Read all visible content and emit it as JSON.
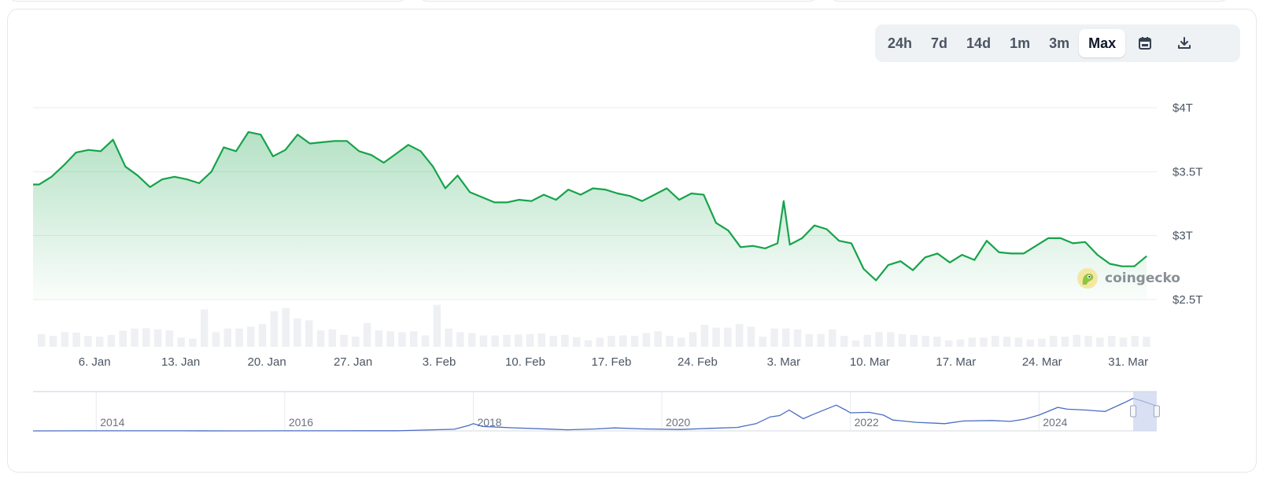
{
  "controls": {
    "ranges": [
      "24h",
      "7d",
      "14d",
      "1m",
      "3m",
      "Max"
    ],
    "active_range": "Max",
    "calendar_icon": "calendar-icon",
    "download_icon": "download-icon"
  },
  "watermark": {
    "text": "coingecko",
    "logo_icon": "gecko-logo-icon"
  },
  "colors": {
    "line": "#16a34a",
    "fill": "#16a34a",
    "volume": "#eef0f3",
    "navigator": "#4a6cc2",
    "selection": "#c9d3ee"
  },
  "chart_data": [
    {
      "type": "area",
      "title": "",
      "xlabel": "",
      "ylabel": "",
      "x_start": "2025-01-01",
      "x_end": "2025-04-02",
      "x_ticks": [
        {
          "date": "2025-01-06",
          "label": "6. Jan"
        },
        {
          "date": "2025-01-13",
          "label": "13. Jan"
        },
        {
          "date": "2025-01-20",
          "label": "20. Jan"
        },
        {
          "date": "2025-01-27",
          "label": "27. Jan"
        },
        {
          "date": "2025-02-03",
          "label": "3. Feb"
        },
        {
          "date": "2025-02-10",
          "label": "10. Feb"
        },
        {
          "date": "2025-02-17",
          "label": "17. Feb"
        },
        {
          "date": "2025-02-24",
          "label": "24. Feb"
        },
        {
          "date": "2025-03-03",
          "label": "3. Mar"
        },
        {
          "date": "2025-03-10",
          "label": "10. Mar"
        },
        {
          "date": "2025-03-17",
          "label": "17. Mar"
        },
        {
          "date": "2025-03-24",
          "label": "24. Mar"
        },
        {
          "date": "2025-03-31",
          "label": "31. Mar"
        }
      ],
      "y_ticks": [
        {
          "value": 2.5,
          "label": "$2.5T"
        },
        {
          "value": 3.0,
          "label": "$3T"
        },
        {
          "value": 3.5,
          "label": "$3.5T"
        },
        {
          "value": 4.0,
          "label": "$4T"
        }
      ],
      "ylim": [
        2.5,
        4.0
      ],
      "grid": true,
      "series": [
        {
          "values": [
            [
              "2025-01-01T00:00",
              3.4
            ],
            [
              "2025-01-01T12:00",
              3.4
            ],
            [
              "2025-01-02T12:00",
              3.46
            ],
            [
              "2025-01-03T12:00",
              3.55
            ],
            [
              "2025-01-04T12:00",
              3.65
            ],
            [
              "2025-01-05T12:00",
              3.67
            ],
            [
              "2025-01-06T12:00",
              3.66
            ],
            [
              "2025-01-07T12:00",
              3.75
            ],
            [
              "2025-01-08T12:00",
              3.54
            ],
            [
              "2025-01-09T12:00",
              3.47
            ],
            [
              "2025-01-10T12:00",
              3.38
            ],
            [
              "2025-01-11T12:00",
              3.44
            ],
            [
              "2025-01-12T12:00",
              3.46
            ],
            [
              "2025-01-13T12:00",
              3.44
            ],
            [
              "2025-01-14T12:00",
              3.41
            ],
            [
              "2025-01-15T12:00",
              3.5
            ],
            [
              "2025-01-16T12:00",
              3.69
            ],
            [
              "2025-01-17T12:00",
              3.66
            ],
            [
              "2025-01-18T12:00",
              3.81
            ],
            [
              "2025-01-19T12:00",
              3.79
            ],
            [
              "2025-01-20T12:00",
              3.62
            ],
            [
              "2025-01-21T12:00",
              3.67
            ],
            [
              "2025-01-22T12:00",
              3.79
            ],
            [
              "2025-01-23T12:00",
              3.72
            ],
            [
              "2025-01-24T12:00",
              3.73
            ],
            [
              "2025-01-25T12:00",
              3.74
            ],
            [
              "2025-01-26T12:00",
              3.74
            ],
            [
              "2025-01-27T12:00",
              3.66
            ],
            [
              "2025-01-28T12:00",
              3.63
            ],
            [
              "2025-01-29T12:00",
              3.57
            ],
            [
              "2025-01-30T12:00",
              3.64
            ],
            [
              "2025-01-31T12:00",
              3.71
            ],
            [
              "2025-02-01T12:00",
              3.66
            ],
            [
              "2025-02-02T12:00",
              3.54
            ],
            [
              "2025-02-03T12:00",
              3.37
            ],
            [
              "2025-02-04T12:00",
              3.47
            ],
            [
              "2025-02-05T12:00",
              3.34
            ],
            [
              "2025-02-06T12:00",
              3.3
            ],
            [
              "2025-02-07T12:00",
              3.26
            ],
            [
              "2025-02-08T12:00",
              3.26
            ],
            [
              "2025-02-09T12:00",
              3.28
            ],
            [
              "2025-02-10T12:00",
              3.27
            ],
            [
              "2025-02-11T12:00",
              3.32
            ],
            [
              "2025-02-12T12:00",
              3.28
            ],
            [
              "2025-02-13T12:00",
              3.36
            ],
            [
              "2025-02-14T12:00",
              3.32
            ],
            [
              "2025-02-15T12:00",
              3.37
            ],
            [
              "2025-02-16T12:00",
              3.36
            ],
            [
              "2025-02-17T12:00",
              3.33
            ],
            [
              "2025-02-18T12:00",
              3.31
            ],
            [
              "2025-02-19T12:00",
              3.27
            ],
            [
              "2025-02-20T12:00",
              3.32
            ],
            [
              "2025-02-21T12:00",
              3.37
            ],
            [
              "2025-02-22T12:00",
              3.28
            ],
            [
              "2025-02-23T12:00",
              3.33
            ],
            [
              "2025-02-24T12:00",
              3.32
            ],
            [
              "2025-02-25T12:00",
              3.1
            ],
            [
              "2025-02-26T12:00",
              3.04
            ],
            [
              "2025-02-27T12:00",
              2.91
            ],
            [
              "2025-02-28T12:00",
              2.92
            ],
            [
              "2025-03-01T12:00",
              2.9
            ],
            [
              "2025-03-02T12:00",
              2.94
            ],
            [
              "2025-03-03T00:00",
              3.27
            ],
            [
              "2025-03-03T12:00",
              2.93
            ],
            [
              "2025-03-04T12:00",
              2.98
            ],
            [
              "2025-03-05T12:00",
              3.08
            ],
            [
              "2025-03-06T12:00",
              3.05
            ],
            [
              "2025-03-07T12:00",
              2.96
            ],
            [
              "2025-03-08T12:00",
              2.94
            ],
            [
              "2025-03-09T12:00",
              2.74
            ],
            [
              "2025-03-10T12:00",
              2.65
            ],
            [
              "2025-03-11T12:00",
              2.77
            ],
            [
              "2025-03-12T12:00",
              2.8
            ],
            [
              "2025-03-13T12:00",
              2.73
            ],
            [
              "2025-03-14T12:00",
              2.83
            ],
            [
              "2025-03-15T12:00",
              2.86
            ],
            [
              "2025-03-16T12:00",
              2.79
            ],
            [
              "2025-03-17T12:00",
              2.85
            ],
            [
              "2025-03-18T12:00",
              2.81
            ],
            [
              "2025-03-19T12:00",
              2.96
            ],
            [
              "2025-03-20T12:00",
              2.87
            ],
            [
              "2025-03-21T12:00",
              2.86
            ],
            [
              "2025-03-22T12:00",
              2.86
            ],
            [
              "2025-03-23T12:00",
              2.92
            ],
            [
              "2025-03-24T12:00",
              2.98
            ],
            [
              "2025-03-25T12:00",
              2.98
            ],
            [
              "2025-03-26T12:00",
              2.94
            ],
            [
              "2025-03-27T12:00",
              2.95
            ],
            [
              "2025-03-28T12:00",
              2.85
            ],
            [
              "2025-03-29T12:00",
              2.78
            ],
            [
              "2025-03-30T12:00",
              2.76
            ],
            [
              "2025-03-31T12:00",
              2.76
            ],
            [
              "2025-04-01T12:00",
              2.84
            ]
          ]
        }
      ],
      "volume": {
        "values": [
          0.28,
          0.24,
          0.32,
          0.31,
          0.24,
          0.22,
          0.26,
          0.35,
          0.4,
          0.41,
          0.38,
          0.36,
          0.2,
          0.18,
          0.82,
          0.32,
          0.4,
          0.4,
          0.44,
          0.5,
          0.78,
          0.85,
          0.62,
          0.58,
          0.36,
          0.38,
          0.26,
          0.22,
          0.52,
          0.36,
          0.34,
          0.32,
          0.34,
          0.25,
          0.92,
          0.4,
          0.32,
          0.3,
          0.25,
          0.25,
          0.26,
          0.27,
          0.28,
          0.29,
          0.24,
          0.26,
          0.21,
          0.14,
          0.2,
          0.24,
          0.25,
          0.24,
          0.3,
          0.34,
          0.24,
          0.2,
          0.32,
          0.48,
          0.42,
          0.42,
          0.5,
          0.44,
          0.22,
          0.4,
          0.4,
          0.38,
          0.28,
          0.28,
          0.38,
          0.24,
          0.14,
          0.26,
          0.32,
          0.32,
          0.28,
          0.26,
          0.24,
          0.22,
          0.14,
          0.16,
          0.2,
          0.2,
          0.24,
          0.22,
          0.2,
          0.16,
          0.18,
          0.24,
          0.22,
          0.26,
          0.24,
          0.2,
          0.24,
          0.2,
          0.24,
          0.22
        ]
      }
    },
    {
      "type": "line",
      "role": "navigator",
      "x_ticks": [
        {
          "year": 2014,
          "label": "2014"
        },
        {
          "year": 2016,
          "label": "2016"
        },
        {
          "year": 2018,
          "label": "2018"
        },
        {
          "year": 2020,
          "label": "2020"
        },
        {
          "year": 2022,
          "label": "2022"
        },
        {
          "year": 2024,
          "label": "2024"
        }
      ],
      "x_range": [
        2013.33,
        2025.25
      ],
      "ylim": [
        0,
        4.0
      ],
      "series": [
        {
          "values": [
            [
              2013.33,
              0.001
            ],
            [
              2013.9,
              0.01
            ],
            [
              2014.2,
              0.012
            ],
            [
              2014.9,
              0.005
            ],
            [
              2015.5,
              0.004
            ],
            [
              2016.0,
              0.007
            ],
            [
              2016.5,
              0.01
            ],
            [
              2016.9,
              0.016
            ],
            [
              2017.2,
              0.02
            ],
            [
              2017.5,
              0.1
            ],
            [
              2017.8,
              0.18
            ],
            [
              2017.95,
              0.6
            ],
            [
              2018.0,
              0.8
            ],
            [
              2018.1,
              0.5
            ],
            [
              2018.4,
              0.35
            ],
            [
              2018.8,
              0.2
            ],
            [
              2019.0,
              0.12
            ],
            [
              2019.3,
              0.22
            ],
            [
              2019.5,
              0.33
            ],
            [
              2019.8,
              0.22
            ],
            [
              2020.2,
              0.16
            ],
            [
              2020.5,
              0.28
            ],
            [
              2020.8,
              0.38
            ],
            [
              2021.0,
              0.8
            ],
            [
              2021.15,
              1.55
            ],
            [
              2021.25,
              1.7
            ],
            [
              2021.35,
              2.3
            ],
            [
              2021.5,
              1.35
            ],
            [
              2021.6,
              1.8
            ],
            [
              2021.85,
              2.85
            ],
            [
              2021.95,
              2.3
            ],
            [
              2022.0,
              2.0
            ],
            [
              2022.2,
              2.05
            ],
            [
              2022.35,
              1.75
            ],
            [
              2022.45,
              1.2
            ],
            [
              2022.7,
              0.95
            ],
            [
              2022.9,
              0.85
            ],
            [
              2023.0,
              0.8
            ],
            [
              2023.2,
              1.1
            ],
            [
              2023.5,
              1.15
            ],
            [
              2023.7,
              1.05
            ],
            [
              2023.85,
              1.3
            ],
            [
              2024.0,
              1.75
            ],
            [
              2024.2,
              2.6
            ],
            [
              2024.3,
              2.4
            ],
            [
              2024.5,
              2.3
            ],
            [
              2024.7,
              2.15
            ],
            [
              2024.9,
              3.1
            ],
            [
              2025.0,
              3.6
            ],
            [
              2025.1,
              3.3
            ],
            [
              2025.25,
              2.75
            ]
          ]
        }
      ],
      "selection": [
        "2025-01-01",
        "2025-04-02"
      ]
    }
  ]
}
